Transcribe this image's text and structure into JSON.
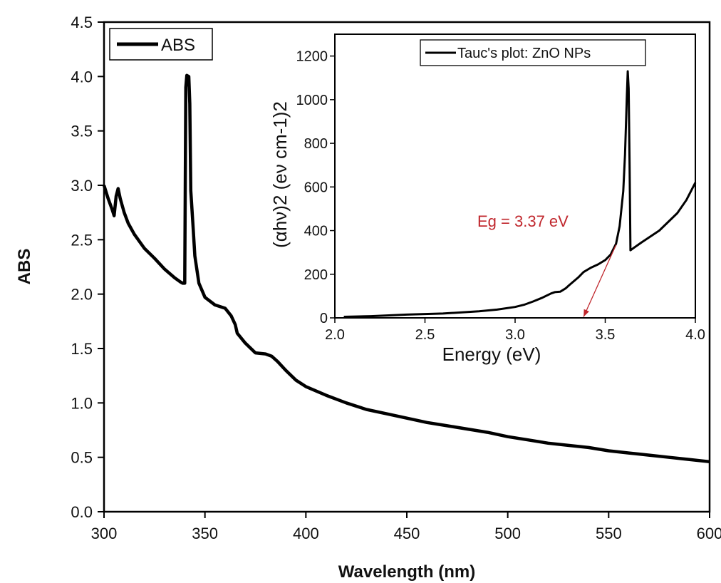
{
  "chart_data": [
    {
      "type": "line",
      "xlabel": "Wavelength (nm)",
      "ylabel": "ABS",
      "xlim": [
        300,
        600
      ],
      "ylim": [
        0,
        4.5
      ],
      "xticks": [
        "300",
        "350",
        "400",
        "450",
        "500",
        "550",
        "600"
      ],
      "yticks": [
        "0.0",
        "0.5",
        "1.0",
        "1.5",
        "2.0",
        "2.5",
        "3.0",
        "3.5",
        "4.0",
        "4.5"
      ],
      "legend": "top-left",
      "series": [
        {
          "name": "ABS",
          "color": "#000000",
          "points": [
            [
              300,
              3.0
            ],
            [
              302,
              2.88
            ],
            [
              304,
              2.78
            ],
            [
              305,
              2.72
            ],
            [
              306,
              2.9
            ],
            [
              307,
              2.97
            ],
            [
              308,
              2.88
            ],
            [
              310,
              2.75
            ],
            [
              312,
              2.65
            ],
            [
              315,
              2.55
            ],
            [
              320,
              2.42
            ],
            [
              325,
              2.33
            ],
            [
              330,
              2.23
            ],
            [
              335,
              2.15
            ],
            [
              338,
              2.11
            ],
            [
              339,
              2.1
            ],
            [
              340,
              2.1
            ],
            [
              340.5,
              3.9
            ],
            [
              341,
              4.01
            ],
            [
              342,
              4.0
            ],
            [
              342.5,
              3.75
            ],
            [
              343,
              2.95
            ],
            [
              344,
              2.65
            ],
            [
              345,
              2.35
            ],
            [
              347,
              2.1
            ],
            [
              350,
              1.97
            ],
            [
              355,
              1.9
            ],
            [
              360,
              1.87
            ],
            [
              363,
              1.8
            ],
            [
              365,
              1.72
            ],
            [
              366,
              1.64
            ],
            [
              370,
              1.55
            ],
            [
              375,
              1.46
            ],
            [
              380,
              1.45
            ],
            [
              383,
              1.43
            ],
            [
              386,
              1.38
            ],
            [
              390,
              1.3
            ],
            [
              395,
              1.21
            ],
            [
              400,
              1.15
            ],
            [
              410,
              1.07
            ],
            [
              420,
              1.0
            ],
            [
              430,
              0.94
            ],
            [
              440,
              0.9
            ],
            [
              450,
              0.86
            ],
            [
              460,
              0.82
            ],
            [
              470,
              0.79
            ],
            [
              480,
              0.76
            ],
            [
              490,
              0.73
            ],
            [
              500,
              0.69
            ],
            [
              510,
              0.66
            ],
            [
              520,
              0.63
            ],
            [
              530,
              0.61
            ],
            [
              540,
              0.59
            ],
            [
              550,
              0.56
            ],
            [
              560,
              0.54
            ],
            [
              570,
              0.52
            ],
            [
              580,
              0.5
            ],
            [
              590,
              0.48
            ],
            [
              600,
              0.46
            ]
          ]
        }
      ]
    },
    {
      "type": "line",
      "xlabel": "Energy (eV)",
      "ylabel": "(αhν)2 (eν cm-1)2",
      "xlim": [
        2.0,
        4.0
      ],
      "ylim": [
        0,
        1300
      ],
      "xticks": [
        "2.0",
        "2.5",
        "3.0",
        "3.5",
        "4.0"
      ],
      "yticks": [
        "0",
        "200",
        "400",
        "600",
        "800",
        "1000",
        "1200"
      ],
      "legend": "top-right",
      "annotation": "Eg = 3.37 eV",
      "annotation_color": "#c0272d",
      "tangent_line": [
        [
          3.38,
          5
        ],
        [
          3.56,
          335
        ]
      ],
      "series": [
        {
          "name": "Tauc's plot: ZnO NPs",
          "color": "#000000",
          "points": [
            [
              2.05,
              5
            ],
            [
              2.2,
              8
            ],
            [
              2.4,
              15
            ],
            [
              2.6,
              20
            ],
            [
              2.8,
              30
            ],
            [
              2.9,
              38
            ],
            [
              3.0,
              50
            ],
            [
              3.05,
              60
            ],
            [
              3.1,
              75
            ],
            [
              3.15,
              92
            ],
            [
              3.2,
              112
            ],
            [
              3.22,
              118
            ],
            [
              3.25,
              120
            ],
            [
              3.28,
              135
            ],
            [
              3.3,
              150
            ],
            [
              3.35,
              185
            ],
            [
              3.38,
              210
            ],
            [
              3.42,
              230
            ],
            [
              3.46,
              245
            ],
            [
              3.5,
              265
            ],
            [
              3.53,
              290
            ],
            [
              3.56,
              340
            ],
            [
              3.58,
              420
            ],
            [
              3.6,
              580
            ],
            [
              3.61,
              750
            ],
            [
              3.62,
              1020
            ],
            [
              3.625,
              1130
            ],
            [
              3.63,
              1050
            ],
            [
              3.635,
              700
            ],
            [
              3.64,
              310
            ],
            [
              3.7,
              345
            ],
            [
              3.8,
              400
            ],
            [
              3.9,
              480
            ],
            [
              3.95,
              540
            ],
            [
              4.0,
              620
            ]
          ]
        }
      ]
    }
  ]
}
